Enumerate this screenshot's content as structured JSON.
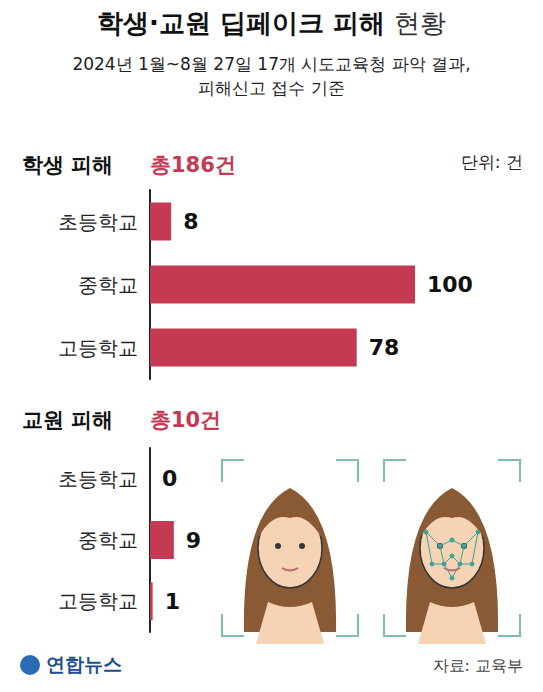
{
  "title": "학생·교원 딥페이크 피해 현황",
  "subtitle": [
    "2024년 1월~8월 27일 17개 시도교육청 파악 결과,",
    "피해신고 접수 기준"
  ],
  "unit": "단위: 건",
  "source": "자료: 교육부",
  "credit": "연합뉴스",
  "chart_data": [
    {
      "type": "bar",
      "orientation": "horizontal",
      "title": "학생 피해",
      "subtitle": "총186건",
      "categories": [
        "초등학교",
        "중학교",
        "고등학교"
      ],
      "values": [
        8,
        100,
        78
      ],
      "color": "#c43a52",
      "xlim": [
        0,
        100
      ],
      "data_labels": true,
      "tick_labels": "y",
      "grid": false
    },
    {
      "type": "bar",
      "orientation": "horizontal",
      "title": "교원 피해",
      "subtitle": "총10건",
      "categories": [
        "초등학교",
        "중학교",
        "고등학교"
      ],
      "values": [
        0,
        9,
        1
      ],
      "color": "#c43a52",
      "xlim": [
        0,
        100
      ],
      "data_labels": true,
      "tick_labels": "y",
      "grid": false
    }
  ]
}
